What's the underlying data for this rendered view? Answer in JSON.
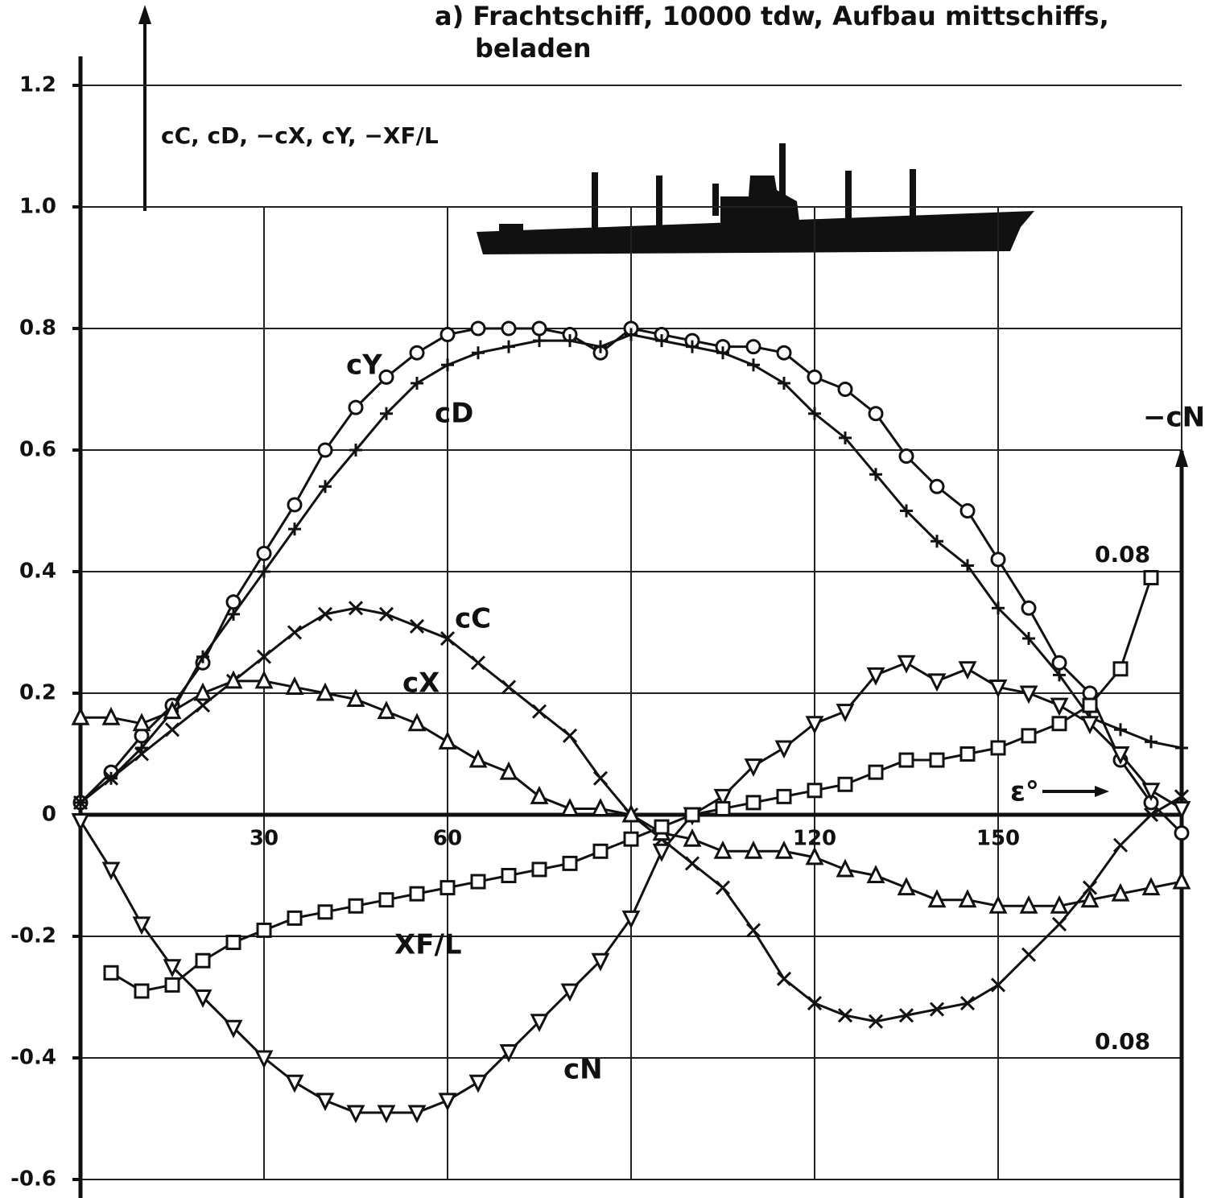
{
  "chart_data": {
    "type": "line",
    "title": "a) Frachtschiff, 10000 tdw, Aufbau mittschiffs,",
    "subtitle": "beladen",
    "y_label": "cC, cD, −cX, cY, −XF/L",
    "x_label": "ε°",
    "right_axis_label": "−cN",
    "annotations": [
      "0.08",
      "0.08"
    ],
    "xlim": [
      0,
      180
    ],
    "ylim": [
      -0.6,
      1.2
    ],
    "xticks": [
      30,
      60,
      120,
      150
    ],
    "xgrid": [
      30,
      60,
      90,
      120,
      150,
      180
    ],
    "yticks": [
      {
        "value": 1.2,
        "label": "1.2"
      },
      {
        "value": 1,
        "label": "1.0"
      },
      0.8,
      0.6,
      0.4,
      0.2,
      0,
      -0.2,
      -0.4,
      -0.6
    ],
    "grid": true,
    "x": [
      0,
      5,
      10,
      15,
      20,
      25,
      30,
      35,
      40,
      45,
      50,
      55,
      60,
      65,
      70,
      75,
      80,
      85,
      90,
      95,
      100,
      105,
      110,
      115,
      120,
      125,
      130,
      135,
      140,
      145,
      150,
      155,
      160,
      165,
      170,
      175,
      180
    ],
    "series": [
      {
        "name": "cY",
        "color": "#111111",
        "marker": "circle",
        "values": [
          0.02,
          0.07,
          0.13,
          0.18,
          0.25,
          0.35,
          0.43,
          0.51,
          0.6,
          0.67,
          0.72,
          0.76,
          0.79,
          0.8,
          0.8,
          0.8,
          0.79,
          0.76,
          0.8,
          0.79,
          0.78,
          0.77,
          0.77,
          0.76,
          0.72,
          0.7,
          0.66,
          0.59,
          0.54,
          0.5,
          0.42,
          0.34,
          0.25,
          0.2,
          0.09,
          0.02,
          -0.03
        ]
      },
      {
        "name": "cD",
        "color": "#111111",
        "marker": "plus",
        "values": [
          0.02,
          0.06,
          0.11,
          0.17,
          0.26,
          0.33,
          0.4,
          0.47,
          0.54,
          0.6,
          0.66,
          0.71,
          0.74,
          0.76,
          0.77,
          0.78,
          0.78,
          0.77,
          0.79,
          0.78,
          0.77,
          0.76,
          0.74,
          0.71,
          0.66,
          0.62,
          0.56,
          0.5,
          0.45,
          0.41,
          0.34,
          0.29,
          0.23,
          0.16,
          0.14,
          0.12,
          0.11
        ]
      },
      {
        "name": "cC",
        "color": "#111111",
        "marker": "cross",
        "values": [
          0.02,
          0.06,
          0.1,
          0.14,
          0.18,
          0.22,
          0.26,
          0.3,
          0.33,
          0.34,
          0.33,
          0.31,
          0.29,
          0.25,
          0.21,
          0.17,
          0.13,
          0.06,
          0,
          -0.04,
          -0.08,
          -0.12,
          -0.19,
          -0.27,
          -0.31,
          -0.33,
          -0.34,
          -0.33,
          -0.32,
          -0.31,
          -0.28,
          -0.23,
          -0.18,
          -0.12,
          -0.05,
          0,
          0.03
        ]
      },
      {
        "name": "cX",
        "color": "#111111",
        "marker": "triangle-up",
        "values": [
          0.16,
          0.16,
          0.15,
          0.17,
          0.2,
          0.22,
          0.22,
          0.21,
          0.2,
          0.19,
          0.17,
          0.15,
          0.12,
          0.09,
          0.07,
          0.03,
          0.01,
          0.01,
          0,
          -0.03,
          -0.04,
          -0.06,
          -0.06,
          -0.06,
          -0.07,
          -0.09,
          -0.1,
          -0.12,
          -0.14,
          -0.14,
          -0.15,
          -0.15,
          -0.15,
          -0.14,
          -0.13,
          -0.12,
          -0.11
        ]
      },
      {
        "name": "cN",
        "color": "#111111",
        "marker": "triangle-down",
        "values": [
          -0.01,
          -0.09,
          -0.18,
          -0.25,
          -0.3,
          -0.35,
          -0.4,
          -0.44,
          -0.47,
          -0.49,
          -0.49,
          -0.49,
          -0.47,
          -0.44,
          -0.39,
          -0.34,
          -0.29,
          -0.24,
          -0.17,
          -0.06,
          0,
          0.03,
          0.08,
          0.11,
          0.15,
          0.17,
          0.23,
          0.25,
          0.22,
          0.24,
          0.21,
          0.2,
          0.18,
          0.15,
          0.1,
          0.04,
          0.01
        ]
      },
      {
        "name": "XF/L",
        "color": "#111111",
        "marker": "square",
        "values": [
          null,
          -0.26,
          -0.29,
          -0.28,
          -0.24,
          -0.21,
          -0.19,
          -0.17,
          -0.16,
          -0.15,
          -0.14,
          -0.13,
          -0.12,
          -0.11,
          -0.1,
          -0.09,
          -0.08,
          -0.06,
          -0.04,
          -0.02,
          0,
          0.01,
          0.02,
          0.03,
          0.04,
          0.05,
          0.07,
          0.09,
          0.09,
          0.1,
          0.11,
          0.13,
          0.15,
          0.18,
          0.24,
          0.39,
          null
        ]
      }
    ]
  }
}
